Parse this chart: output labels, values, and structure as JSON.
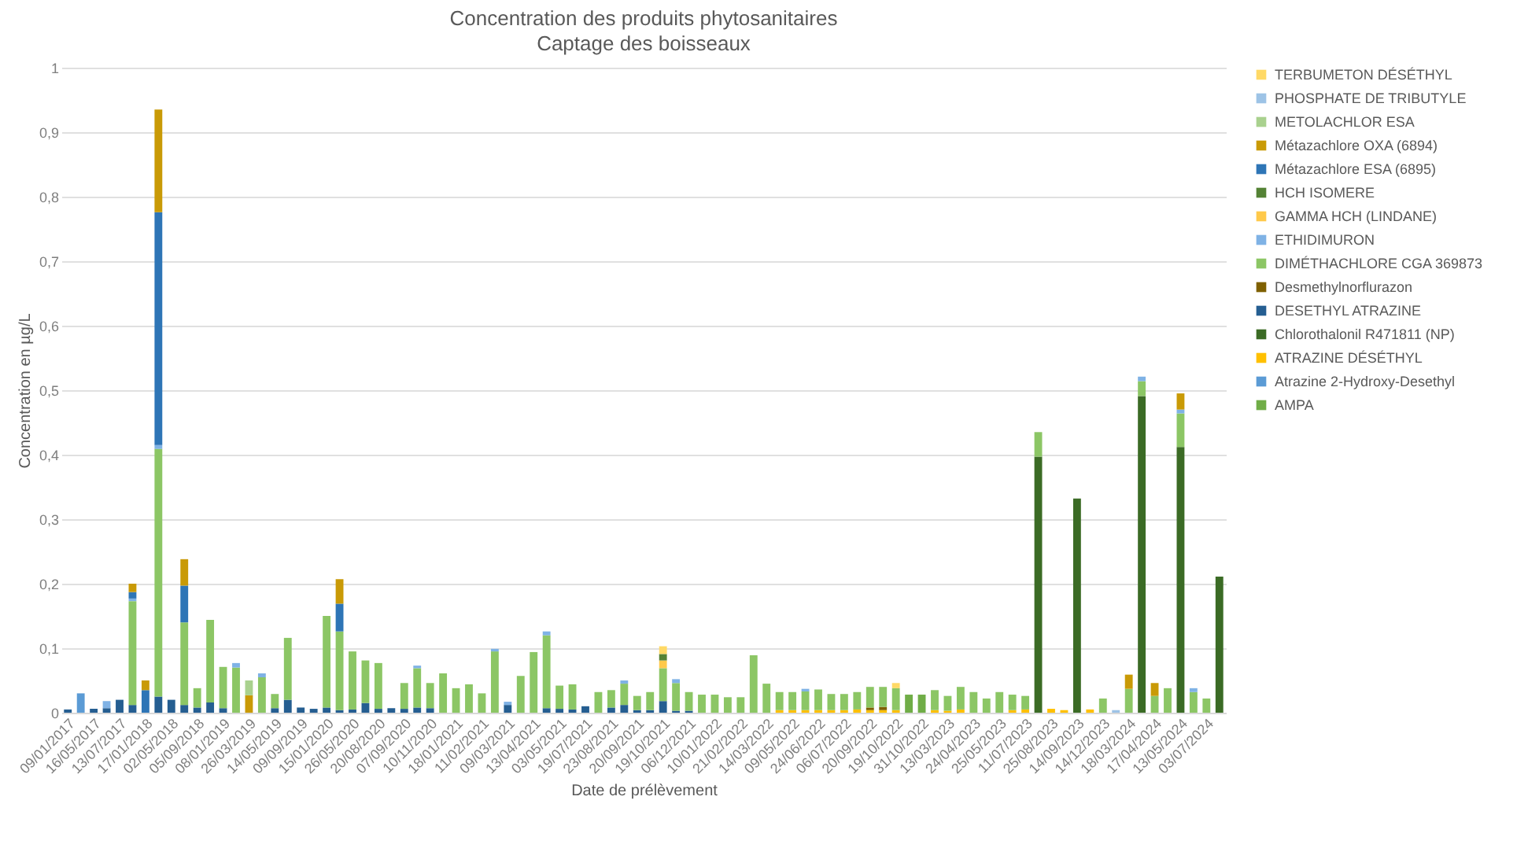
{
  "chart_data": {
    "type": "bar",
    "stacked": true,
    "title": "Concentration des produits phytosanitaires",
    "subtitle": "Captage des boisseaux",
    "xlabel": "Date de prélèvement",
    "ylabel": "Concentration en µg/L",
    "categories": [
      "09/01/2017",
      null,
      "16/05/2017",
      null,
      "13/07/2017",
      null,
      "17/01/2018",
      null,
      "02/05/2018",
      null,
      "05/09/2018",
      null,
      "08/01/2019",
      null,
      "26/03/2019",
      null,
      "14/05/2019",
      null,
      "09/09/2019",
      null,
      "15/01/2020",
      null,
      "26/05/2020",
      null,
      "20/08/2020",
      null,
      "07/09/2020",
      null,
      "10/11/2020",
      null,
      "18/01/2021",
      null,
      "11/02/2021",
      null,
      "09/03/2021",
      null,
      "13/04/2021",
      null,
      "03/05/2021",
      null,
      "19/07/2021",
      null,
      "23/08/2021",
      null,
      "20/09/2021",
      null,
      "19/10/2021",
      null,
      "06/12/2021",
      null,
      "10/01/2022",
      null,
      "21/02/2022",
      null,
      "14/03/2022",
      null,
      "09/05/2022",
      null,
      "24/06/2022",
      null,
      "06/07/2022",
      null,
      "20/09/2022",
      null,
      "19/10/2022",
      null,
      "31/10/2022",
      null,
      "13/03/2023",
      null,
      "24/04/2023",
      null,
      "25/05/2023",
      null,
      "11/07/2023",
      null,
      "25/08/2023",
      null,
      "14/09/2023",
      null,
      "14/12/2023",
      null,
      "18/03/2024",
      null,
      "17/04/2024",
      null,
      "13/05/2024",
      null,
      "03/07/2024",
      null
    ],
    "ylim": [
      0,
      1
    ],
    "yticks": [
      0,
      {
        "value": 0.1,
        "label": "0,1"
      },
      {
        "value": 0.2,
        "label": "0,2"
      },
      {
        "value": 0.3,
        "label": "0,3"
      },
      {
        "value": 0.4,
        "label": "0,4"
      },
      {
        "value": 0.5,
        "label": "0,5"
      },
      {
        "value": 0.6,
        "label": "0,6"
      },
      {
        "value": 0.7,
        "label": "0,7"
      },
      {
        "value": 0.8,
        "label": "0,8"
      },
      {
        "value": 0.9,
        "label": "0,9"
      },
      1
    ],
    "grid": "y",
    "legend": "right",
    "series": [
      {
        "name": "AMPA",
        "color": "#70ad47",
        "values": [
          null,
          null,
          null,
          null,
          null,
          null,
          null,
          null,
          null,
          null,
          null,
          null,
          null,
          null,
          null,
          null,
          null,
          null,
          null,
          null,
          null,
          null,
          null,
          null,
          null,
          null,
          null,
          null,
          null,
          null,
          null,
          null,
          null,
          null,
          null,
          null,
          null,
          null,
          null,
          null,
          null,
          null,
          null,
          null,
          null,
          null,
          null,
          null,
          null,
          null,
          null,
          null,
          null,
          null,
          null,
          null,
          null,
          null,
          null,
          null,
          null,
          null,
          null,
          null,
          null,
          0.028,
          0.028,
          null,
          null,
          null,
          null,
          null,
          null,
          null,
          null,
          null,
          null,
          null,
          null,
          null,
          null,
          null,
          null,
          null,
          null,
          null,
          null,
          null,
          null,
          null
        ]
      },
      {
        "name": "Atrazine 2-Hydroxy-Desethyl",
        "color": "#5b9bd5",
        "values": [
          null,
          0.03,
          null,
          null,
          null,
          null,
          null,
          null,
          null,
          null,
          null,
          null,
          null,
          null,
          null,
          null,
          null,
          null,
          null,
          null,
          null,
          null,
          null,
          null,
          null,
          null,
          null,
          null,
          null,
          null,
          null,
          null,
          null,
          null,
          null,
          null,
          null,
          null,
          null,
          null,
          null,
          null,
          null,
          null,
          null,
          null,
          null,
          null,
          null,
          null,
          null,
          null,
          null,
          null,
          null,
          null,
          null,
          null,
          null,
          null,
          null,
          null,
          null,
          null,
          null,
          null,
          null,
          null,
          null,
          null,
          null,
          null,
          null,
          null,
          null,
          null,
          null,
          null,
          null,
          null,
          null,
          null,
          null,
          null,
          null,
          null,
          null,
          null,
          null,
          null
        ]
      },
      {
        "name": "ATRAZINE DÉSÉTHYL",
        "color": "#ffc000",
        "values": [
          null,
          null,
          null,
          null,
          null,
          null,
          null,
          null,
          null,
          null,
          null,
          null,
          null,
          null,
          null,
          null,
          null,
          null,
          null,
          null,
          null,
          null,
          null,
          null,
          null,
          null,
          null,
          null,
          null,
          null,
          null,
          null,
          null,
          null,
          null,
          null,
          null,
          null,
          null,
          null,
          null,
          null,
          null,
          null,
          null,
          null,
          null,
          null,
          null,
          null,
          null,
          null,
          null,
          null,
          null,
          0.004,
          0.004,
          0.004,
          0.004,
          0.004,
          0.004,
          0.005,
          0.004,
          0.004,
          0.004,
          null,
          null,
          0.004,
          0.003,
          0.005,
          null,
          null,
          null,
          0.004,
          0.005,
          null,
          0.006,
          0.004,
          null,
          0.005,
          null,
          null,
          null,
          null,
          null,
          null,
          null,
          null,
          null,
          null
        ]
      },
      {
        "name": "Chlorothalonil  R471811  (NP)",
        "color": "#3b6b25",
        "values": [
          null,
          null,
          null,
          null,
          null,
          null,
          null,
          null,
          null,
          null,
          null,
          null,
          null,
          null,
          null,
          null,
          null,
          null,
          null,
          null,
          null,
          null,
          null,
          null,
          null,
          null,
          null,
          null,
          null,
          null,
          null,
          null,
          null,
          null,
          null,
          null,
          null,
          null,
          null,
          null,
          null,
          null,
          null,
          null,
          null,
          null,
          null,
          null,
          null,
          null,
          null,
          null,
          null,
          null,
          null,
          null,
          null,
          null,
          null,
          null,
          null,
          null,
          null,
          null,
          null,
          null,
          null,
          null,
          null,
          null,
          null,
          null,
          null,
          null,
          null,
          0.397,
          null,
          null,
          0.332,
          null,
          null,
          null,
          null,
          0.491,
          null,
          null,
          0.412,
          null,
          null,
          0.211
        ]
      },
      {
        "name": "DESETHYL ATRAZINE",
        "color": "#255e91",
        "values": [
          0.005,
          null,
          0.006,
          0.007,
          0.02,
          0.012,
          null,
          0.025,
          0.02,
          0.012,
          0.008,
          0.016,
          0.007,
          null,
          null,
          null,
          0.007,
          0.02,
          0.008,
          0.006,
          0.008,
          0.004,
          0.005,
          0.015,
          0.006,
          0.007,
          0.006,
          0.008,
          0.007,
          null,
          null,
          null,
          null,
          null,
          0.012,
          null,
          null,
          0.007,
          0.006,
          0.005,
          0.01,
          null,
          0.008,
          0.012,
          0.004,
          0.004,
          0.018,
          0.003,
          0.003,
          null,
          null,
          null,
          null,
          null,
          null,
          null,
          null,
          null,
          null,
          null,
          null,
          null,
          null,
          null,
          null,
          null,
          null,
          null,
          null,
          null,
          null,
          null,
          null,
          null,
          null,
          null,
          null,
          null,
          null,
          null,
          null,
          null,
          null,
          null,
          null,
          null,
          null,
          null,
          null,
          null
        ]
      },
      {
        "name": "Desmethylnorflurazon",
        "color": "#7f6000",
        "values": [
          null,
          null,
          null,
          null,
          null,
          null,
          null,
          null,
          null,
          null,
          null,
          null,
          null,
          null,
          null,
          null,
          null,
          null,
          null,
          null,
          null,
          null,
          null,
          null,
          null,
          null,
          null,
          null,
          null,
          null,
          null,
          null,
          null,
          null,
          null,
          null,
          null,
          null,
          null,
          null,
          null,
          null,
          null,
          null,
          null,
          null,
          null,
          null,
          null,
          null,
          null,
          null,
          null,
          null,
          null,
          null,
          null,
          null,
          null,
          null,
          null,
          null,
          0.004,
          0.005,
          null,
          null,
          null,
          null,
          null,
          null,
          null,
          null,
          null,
          null,
          null,
          null,
          null,
          null,
          null,
          null,
          null,
          null,
          null,
          null,
          null,
          null,
          null,
          null,
          null,
          null
        ]
      },
      {
        "name": "DIMÉTHACHLORE CGA 369873",
        "color": "#8cc665",
        "values": [
          null,
          null,
          null,
          null,
          null,
          0.161,
          null,
          0.384,
          null,
          0.128,
          0.03,
          0.128,
          0.064,
          0.07,
          null,
          0.055,
          0.022,
          0.096,
          null,
          null,
          0.142,
          0.122,
          0.09,
          0.066,
          0.071,
          null,
          0.04,
          0.061,
          0.039,
          0.061,
          0.038,
          0.044,
          0.03,
          0.095,
          null,
          0.057,
          0.094,
          0.113,
          0.036,
          0.039,
          null,
          0.032,
          0.027,
          0.033,
          0.022,
          0.028,
          0.051,
          0.043,
          0.029,
          0.028,
          0.028,
          0.024,
          0.024,
          0.089,
          0.045,
          0.028,
          0.028,
          0.029,
          0.032,
          0.025,
          0.025,
          0.027,
          0.032,
          0.031,
          0.034,
          null,
          null,
          0.031,
          0.023,
          0.035,
          0.032,
          0.022,
          0.032,
          0.024,
          0.021,
          0.038,
          null,
          null,
          null,
          null,
          0.022,
          null,
          0.037,
          0.023,
          0.026,
          0.038,
          0.052,
          0.032,
          0.022,
          null
        ]
      },
      {
        "name": "ETHIDIMURON",
        "color": "#7fb2e5",
        "values": [
          null,
          null,
          null,
          0.011,
          null,
          0.004,
          null,
          0.006,
          null,
          null,
          null,
          null,
          null,
          0.007,
          null,
          0.006,
          null,
          null,
          null,
          null,
          null,
          null,
          null,
          null,
          null,
          null,
          null,
          0.004,
          null,
          null,
          null,
          null,
          null,
          0.004,
          0.005,
          null,
          null,
          0.006,
          null,
          null,
          null,
          null,
          null,
          0.005,
          null,
          null,
          null,
          0.006,
          null,
          null,
          null,
          null,
          null,
          null,
          null,
          null,
          null,
          0.004,
          null,
          null,
          null,
          null,
          null,
          null,
          null,
          null,
          null,
          null,
          null,
          null,
          null,
          null,
          null,
          null,
          null,
          null,
          null,
          null,
          null,
          null,
          null,
          null,
          null,
          0.007,
          null,
          null,
          0.006,
          0.006,
          null,
          null
        ]
      },
      {
        "name": "GAMMA HCH (LINDANE)",
        "color": "#ffc94a",
        "values": [
          null,
          null,
          null,
          null,
          null,
          null,
          null,
          null,
          null,
          null,
          null,
          null,
          null,
          null,
          null,
          null,
          null,
          null,
          null,
          null,
          null,
          null,
          null,
          null,
          null,
          null,
          null,
          null,
          null,
          null,
          null,
          null,
          null,
          null,
          null,
          null,
          null,
          null,
          null,
          null,
          null,
          null,
          null,
          null,
          null,
          null,
          0.012,
          null,
          null,
          null,
          null,
          null,
          null,
          null,
          null,
          null,
          null,
          null,
          null,
          null,
          null,
          null,
          null,
          null,
          null,
          null,
          null,
          null,
          null,
          null,
          null,
          null,
          null,
          null,
          null,
          null,
          null,
          null,
          null,
          null,
          null,
          null,
          null,
          null,
          null,
          null,
          null,
          null,
          null,
          null
        ]
      },
      {
        "name": "HCH ISOMERE",
        "color": "#548235",
        "values": [
          null,
          null,
          null,
          null,
          null,
          null,
          null,
          null,
          null,
          null,
          null,
          null,
          null,
          null,
          null,
          null,
          null,
          null,
          null,
          null,
          null,
          null,
          null,
          null,
          null,
          null,
          null,
          null,
          null,
          null,
          null,
          null,
          null,
          null,
          null,
          null,
          null,
          null,
          null,
          null,
          null,
          null,
          null,
          null,
          null,
          null,
          0.01,
          null,
          null,
          null,
          null,
          null,
          null,
          null,
          null,
          null,
          null,
          null,
          null,
          null,
          null,
          null,
          null,
          null,
          null,
          null,
          null,
          null,
          null,
          null,
          null,
          null,
          null,
          null,
          null,
          null,
          null,
          null,
          null,
          null,
          null,
          null,
          null,
          null,
          null,
          null,
          null,
          null,
          null,
          null
        ]
      },
      {
        "name": "Métazachlore ESA (6895)",
        "color": "#2e75b6",
        "values": [
          null,
          null,
          null,
          null,
          null,
          0.01,
          0.035,
          0.361,
          null,
          0.057,
          null,
          null,
          null,
          null,
          null,
          null,
          null,
          null,
          null,
          null,
          null,
          0.043,
          null,
          null,
          null,
          null,
          null,
          null,
          null,
          null,
          null,
          null,
          null,
          null,
          null,
          null,
          null,
          null,
          null,
          null,
          null,
          null,
          null,
          null,
          null,
          null,
          null,
          null,
          null,
          null,
          null,
          null,
          null,
          null,
          null,
          null,
          null,
          null,
          null,
          null,
          null,
          null,
          null,
          null,
          null,
          null,
          null,
          null,
          null,
          null,
          null,
          null,
          null,
          null,
          null,
          null,
          null,
          null,
          null,
          null,
          null,
          null,
          null,
          null,
          null,
          null,
          null,
          null,
          null,
          null
        ]
      },
      {
        "name": "Métazachlore OXA (6894)",
        "color": "#c99a06",
        "values": [
          null,
          null,
          null,
          null,
          null,
          0.013,
          0.015,
          0.159,
          null,
          0.041,
          null,
          null,
          null,
          null,
          0.027,
          null,
          null,
          null,
          null,
          null,
          null,
          0.038,
          null,
          null,
          null,
          null,
          null,
          null,
          null,
          null,
          null,
          null,
          null,
          null,
          null,
          null,
          null,
          null,
          null,
          null,
          null,
          null,
          null,
          null,
          null,
          null,
          null,
          null,
          null,
          null,
          null,
          null,
          null,
          null,
          null,
          null,
          null,
          null,
          null,
          null,
          null,
          null,
          null,
          null,
          null,
          null,
          null,
          null,
          null,
          null,
          null,
          null,
          null,
          null,
          null,
          null,
          null,
          null,
          null,
          null,
          null,
          null,
          0.022,
          null,
          0.02,
          null,
          0.025,
          null,
          null,
          null
        ]
      },
      {
        "name": "METOLACHLOR ESA",
        "color": "#a9d18e",
        "values": [
          null,
          null,
          null,
          null,
          null,
          null,
          null,
          null,
          null,
          null,
          null,
          null,
          null,
          null,
          0.023,
          null,
          null,
          null,
          null,
          null,
          null,
          null,
          null,
          null,
          null,
          null,
          null,
          null,
          null,
          null,
          null,
          null,
          null,
          null,
          null,
          null,
          null,
          null,
          null,
          null,
          null,
          null,
          null,
          null,
          null,
          null,
          null,
          null,
          null,
          null,
          null,
          null,
          null,
          null,
          null,
          null,
          null,
          null,
          null,
          null,
          null,
          null,
          null,
          null,
          null,
          null,
          null,
          null,
          null,
          null,
          null,
          null,
          null,
          null,
          null,
          null,
          null,
          null,
          null,
          null,
          null,
          null,
          null,
          null,
          null,
          null,
          null,
          null,
          null,
          null
        ]
      },
      {
        "name": "PHOSPHATE DE TRIBUTYLE",
        "color": "#9dc3e6",
        "values": [
          null,
          null,
          null,
          null,
          null,
          null,
          null,
          null,
          null,
          null,
          null,
          null,
          null,
          null,
          null,
          null,
          null,
          null,
          null,
          null,
          null,
          null,
          null,
          null,
          null,
          null,
          null,
          null,
          null,
          null,
          null,
          null,
          null,
          null,
          null,
          null,
          null,
          null,
          null,
          null,
          null,
          null,
          null,
          null,
          null,
          null,
          null,
          null,
          null,
          null,
          null,
          null,
          null,
          null,
          null,
          null,
          null,
          null,
          null,
          null,
          null,
          null,
          null,
          null,
          null,
          null,
          null,
          null,
          null,
          null,
          null,
          null,
          null,
          null,
          null,
          null,
          null,
          null,
          null,
          null,
          null,
          0.004,
          null,
          null,
          null,
          null,
          null,
          null,
          null,
          null
        ]
      },
      {
        "name": "TERBUMETON DÉSÉTHYL",
        "color": "#ffd966",
        "values": [
          null,
          null,
          null,
          null,
          null,
          null,
          null,
          null,
          null,
          null,
          null,
          null,
          null,
          null,
          null,
          null,
          null,
          null,
          null,
          null,
          null,
          null,
          null,
          null,
          null,
          null,
          null,
          null,
          null,
          null,
          null,
          null,
          null,
          null,
          null,
          null,
          null,
          null,
          null,
          null,
          null,
          null,
          null,
          null,
          null,
          null,
          0.012,
          null,
          null,
          null,
          null,
          null,
          null,
          null,
          null,
          null,
          null,
          null,
          null,
          null,
          null,
          null,
          null,
          null,
          0.008,
          null,
          null,
          null,
          null,
          null,
          null,
          null,
          null,
          null,
          null,
          null,
          null,
          null,
          null,
          null,
          null,
          null,
          null,
          null,
          null,
          null,
          null,
          null,
          null,
          null
        ]
      }
    ]
  }
}
